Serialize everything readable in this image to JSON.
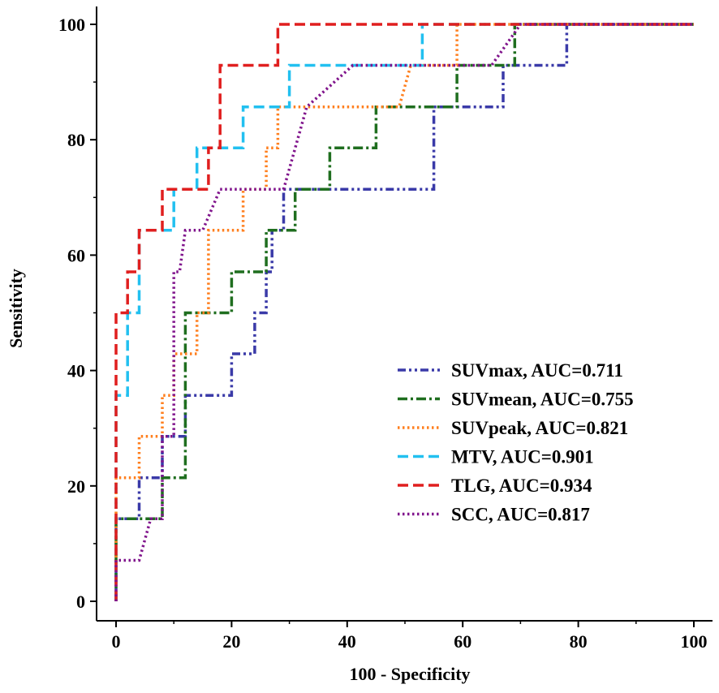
{
  "chart_data": {
    "type": "line",
    "title": "",
    "xlabel": "100 - Specificity",
    "ylabel": "Sensitivity",
    "xlim": [
      0,
      100
    ],
    "ylim": [
      0,
      100
    ],
    "xticks": [
      0,
      20,
      40,
      60,
      80,
      100
    ],
    "yticks": [
      0,
      20,
      40,
      60,
      80,
      100
    ],
    "x_tick_labels": [
      "0",
      "20",
      "40",
      "60",
      "80",
      "100"
    ],
    "y_tick_labels": [
      "0",
      "20",
      "40",
      "60",
      "80",
      "100"
    ],
    "grid": false,
    "legend_position": "bottom-right",
    "series": [
      {
        "name": "SUVmax, AUC=0.711",
        "color": "#3a3aa8",
        "dash": "dash-dot-dot",
        "points": [
          [
            0,
            0
          ],
          [
            0,
            14.3
          ],
          [
            4,
            14.3
          ],
          [
            4,
            21.4
          ],
          [
            8,
            21.4
          ],
          [
            8,
            28.6
          ],
          [
            12,
            28.6
          ],
          [
            12,
            35.7
          ],
          [
            20,
            35.7
          ],
          [
            20,
            42.9
          ],
          [
            24,
            42.9
          ],
          [
            24,
            50
          ],
          [
            26,
            50
          ],
          [
            26,
            57.1
          ],
          [
            27,
            57.1
          ],
          [
            27,
            64.3
          ],
          [
            29,
            64.3
          ],
          [
            29,
            71.4
          ],
          [
            55,
            71.4
          ],
          [
            55,
            85.7
          ],
          [
            67,
            85.7
          ],
          [
            67,
            92.9
          ],
          [
            78,
            92.9
          ],
          [
            78,
            100
          ],
          [
            100,
            100
          ]
        ]
      },
      {
        "name": "SUVmean, AUC=0.755",
        "color": "#1f6e1f",
        "dash": "dash-dot",
        "points": [
          [
            0,
            0
          ],
          [
            0,
            14.3
          ],
          [
            8,
            14.3
          ],
          [
            8,
            21.4
          ],
          [
            12,
            21.4
          ],
          [
            12,
            50
          ],
          [
            20,
            50
          ],
          [
            20,
            57.1
          ],
          [
            26,
            57.1
          ],
          [
            26,
            64.3
          ],
          [
            31,
            64.3
          ],
          [
            31,
            71.4
          ],
          [
            37,
            71.4
          ],
          [
            37,
            78.6
          ],
          [
            45,
            78.6
          ],
          [
            45,
            85.7
          ],
          [
            59,
            85.7
          ],
          [
            59,
            92.9
          ],
          [
            69,
            92.9
          ],
          [
            69,
            100
          ],
          [
            100,
            100
          ]
        ]
      },
      {
        "name": "SUVpeak, AUC=0.821",
        "color": "#ff7f1e",
        "dash": "dotted",
        "points": [
          [
            0,
            0
          ],
          [
            0,
            21.4
          ],
          [
            4,
            21.4
          ],
          [
            4,
            28.6
          ],
          [
            8,
            28.6
          ],
          [
            8,
            35.7
          ],
          [
            10,
            35.7
          ],
          [
            10,
            42.9
          ],
          [
            14,
            42.9
          ],
          [
            14,
            50
          ],
          [
            16,
            50
          ],
          [
            16,
            64.3
          ],
          [
            22,
            64.3
          ],
          [
            22,
            71.4
          ],
          [
            26,
            71.4
          ],
          [
            26,
            78.6
          ],
          [
            28,
            78.6
          ],
          [
            28,
            85.7
          ],
          [
            49,
            85.7
          ],
          [
            51,
            92.9
          ],
          [
            59,
            92.9
          ],
          [
            59,
            100
          ],
          [
            100,
            100
          ]
        ]
      },
      {
        "name": "MTV, AUC=0.901",
        "color": "#22c0f0",
        "dash": "dashed",
        "points": [
          [
            0,
            0
          ],
          [
            0,
            35.7
          ],
          [
            2,
            35.7
          ],
          [
            2,
            50
          ],
          [
            4,
            50
          ],
          [
            4,
            64.3
          ],
          [
            10,
            64.3
          ],
          [
            10,
            71.4
          ],
          [
            14,
            71.4
          ],
          [
            14,
            78.6
          ],
          [
            22,
            78.6
          ],
          [
            22,
            85.7
          ],
          [
            30,
            85.7
          ],
          [
            30,
            92.9
          ],
          [
            53,
            92.9
          ],
          [
            53,
            100
          ],
          [
            100,
            100
          ]
        ]
      },
      {
        "name": "TLG, AUC=0.934",
        "color": "#e01f1f",
        "dash": "dashed",
        "points": [
          [
            0,
            0
          ],
          [
            0,
            50
          ],
          [
            2,
            50
          ],
          [
            2,
            57.1
          ],
          [
            4,
            57.1
          ],
          [
            4,
            64.3
          ],
          [
            8,
            64.3
          ],
          [
            8,
            71.4
          ],
          [
            16,
            71.4
          ],
          [
            16,
            78.6
          ],
          [
            18,
            78.6
          ],
          [
            18,
            92.9
          ],
          [
            28,
            92.9
          ],
          [
            28,
            100
          ],
          [
            100,
            100
          ]
        ]
      },
      {
        "name": "SCC, AUC=0.817",
        "color": "#80148c",
        "dash": "dotted",
        "points": [
          [
            0,
            0
          ],
          [
            0,
            7.1
          ],
          [
            4,
            7.1
          ],
          [
            6,
            14.3
          ],
          [
            8,
            14.3
          ],
          [
            8,
            28.6
          ],
          [
            10,
            28.6
          ],
          [
            10,
            57.1
          ],
          [
            11,
            57.1
          ],
          [
            12,
            64.3
          ],
          [
            15,
            64.3
          ],
          [
            18,
            71.4
          ],
          [
            29,
            71.4
          ],
          [
            33,
            85.7
          ],
          [
            41,
            92.9
          ],
          [
            65,
            92.9
          ],
          [
            70,
            100
          ],
          [
            100,
            100
          ]
        ]
      }
    ]
  }
}
